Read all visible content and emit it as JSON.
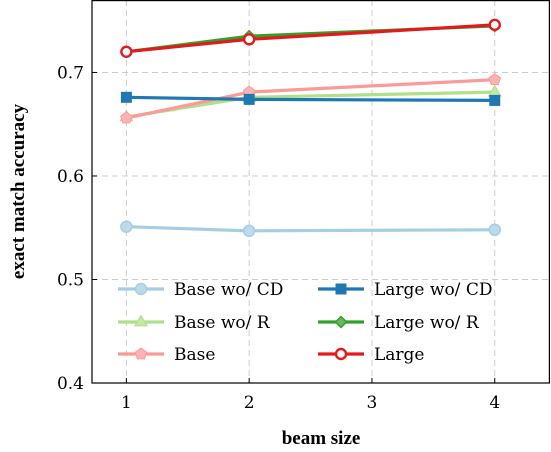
{
  "chart_data": {
    "type": "line",
    "xlabel": "beam size",
    "ylabel": "exact match accuracy",
    "xlim": [
      0.72,
      4.45
    ],
    "ylim": [
      0.4,
      0.77
    ],
    "xticks": [
      1,
      2,
      3,
      4
    ],
    "yticks": [
      0.4,
      0.5,
      0.6,
      0.7
    ],
    "x": [
      1,
      2,
      4
    ],
    "grid": true,
    "legend_position": "bottom",
    "series": [
      {
        "name": "Base wo/ CD",
        "values": [
          0.551,
          0.547,
          0.548
        ],
        "color": "#a6cee3",
        "marker": "circle"
      },
      {
        "name": "Base wo/ R",
        "values": [
          0.657,
          0.676,
          0.681
        ],
        "color": "#b2df8a",
        "marker": "triangle"
      },
      {
        "name": "Base",
        "values": [
          0.656,
          0.681,
          0.693
        ],
        "color": "#fb9a99",
        "marker": "pentagon"
      },
      {
        "name": "Large wo/ CD",
        "values": [
          0.676,
          0.674,
          0.673
        ],
        "color": "#1f78b4",
        "marker": "square"
      },
      {
        "name": "Large wo/ R",
        "values": [
          0.72,
          0.735,
          0.745
        ],
        "color": "#33a02c",
        "marker": "diamond"
      },
      {
        "name": "Large",
        "values": [
          0.72,
          0.732,
          0.746
        ],
        "color": "#e31a1c",
        "marker": "circle-open"
      }
    ]
  }
}
